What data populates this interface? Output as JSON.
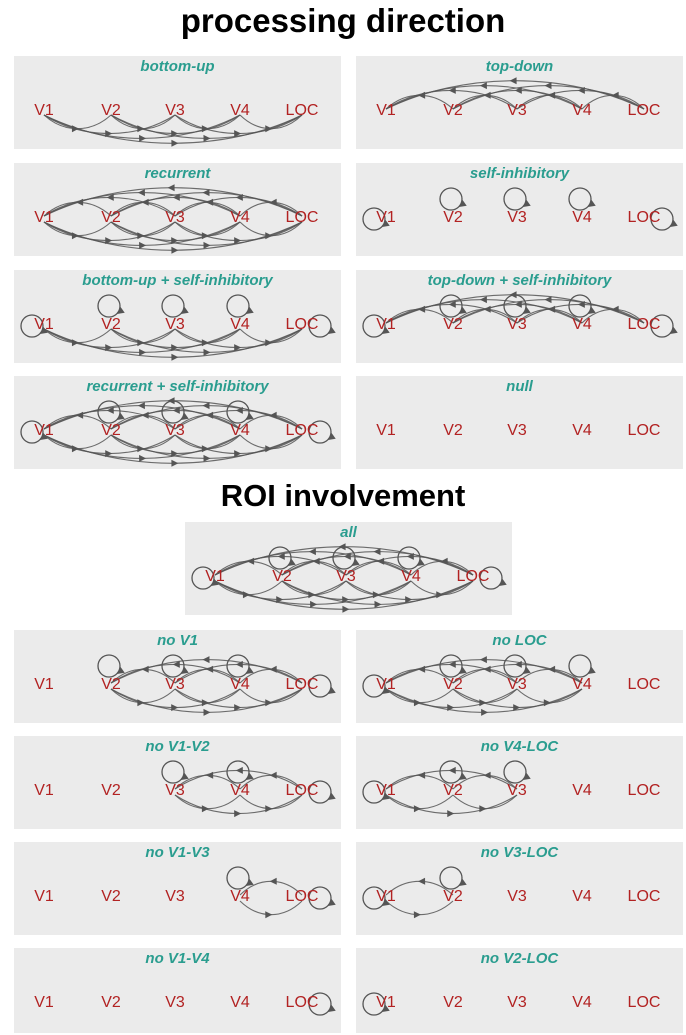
{
  "sections": {
    "processing": "processing direction",
    "roi": "ROI involvement"
  },
  "colors": {
    "panel_bg": "#ebebeb",
    "title": "#2a9d8f",
    "node": "#b22222",
    "edge": "#555555"
  },
  "nodes": [
    "V1",
    "V2",
    "V3",
    "V4",
    "LOC"
  ],
  "panels": [
    {
      "title": "bottom-up",
      "edges": "bottom-up",
      "self": [],
      "active": [
        0,
        1,
        2,
        3,
        4
      ]
    },
    {
      "title": "top-down",
      "edges": "top-down",
      "self": [],
      "active": [
        0,
        1,
        2,
        3,
        4
      ]
    },
    {
      "title": "recurrent",
      "edges": "recurrent",
      "self": [],
      "active": [
        0,
        1,
        2,
        3,
        4
      ]
    },
    {
      "title": "self-inhibitory",
      "edges": "none",
      "self": [
        0,
        1,
        2,
        3,
        4
      ],
      "active": [
        0,
        1,
        2,
        3,
        4
      ]
    },
    {
      "title": "bottom-up + self-inhibitory",
      "edges": "bottom-up",
      "self": [
        0,
        1,
        2,
        3,
        4
      ],
      "active": [
        0,
        1,
        2,
        3,
        4
      ]
    },
    {
      "title": "top-down + self-inhibitory",
      "edges": "top-down",
      "self": [
        0,
        1,
        2,
        3,
        4
      ],
      "active": [
        0,
        1,
        2,
        3,
        4
      ]
    },
    {
      "title": "recurrent + self-inhibitory",
      "edges": "recurrent",
      "self": [
        0,
        1,
        2,
        3,
        4
      ],
      "active": [
        0,
        1,
        2,
        3,
        4
      ]
    },
    {
      "title": "null",
      "edges": "none",
      "self": [],
      "active": []
    },
    {
      "title": "all",
      "edges": "recurrent",
      "self": [
        0,
        1,
        2,
        3,
        4
      ],
      "active": [
        0,
        1,
        2,
        3,
        4
      ]
    },
    {
      "title": "no V1",
      "edges": "recurrent",
      "self": [
        1,
        2,
        3,
        4
      ],
      "active": [
        1,
        2,
        3,
        4
      ]
    },
    {
      "title": "no LOC",
      "edges": "recurrent",
      "self": [
        0,
        1,
        2,
        3
      ],
      "active": [
        0,
        1,
        2,
        3
      ]
    },
    {
      "title": "no V1-V2",
      "edges": "recurrent",
      "self": [
        2,
        3,
        4
      ],
      "active": [
        2,
        3,
        4
      ]
    },
    {
      "title": "no V4-LOC",
      "edges": "recurrent",
      "self": [
        0,
        1,
        2
      ],
      "active": [
        0,
        1,
        2
      ]
    },
    {
      "title": "no V1-V3",
      "edges": "recurrent",
      "self": [
        3,
        4
      ],
      "active": [
        3,
        4
      ]
    },
    {
      "title": "no V3-LOC",
      "edges": "recurrent",
      "self": [
        0,
        1
      ],
      "active": [
        0,
        1
      ]
    },
    {
      "title": "no V1-V4",
      "edges": "recurrent",
      "self": [
        4
      ],
      "active": [
        4
      ]
    },
    {
      "title": "no V2-LOC",
      "edges": "recurrent",
      "self": [
        0
      ],
      "active": [
        0
      ]
    }
  ]
}
